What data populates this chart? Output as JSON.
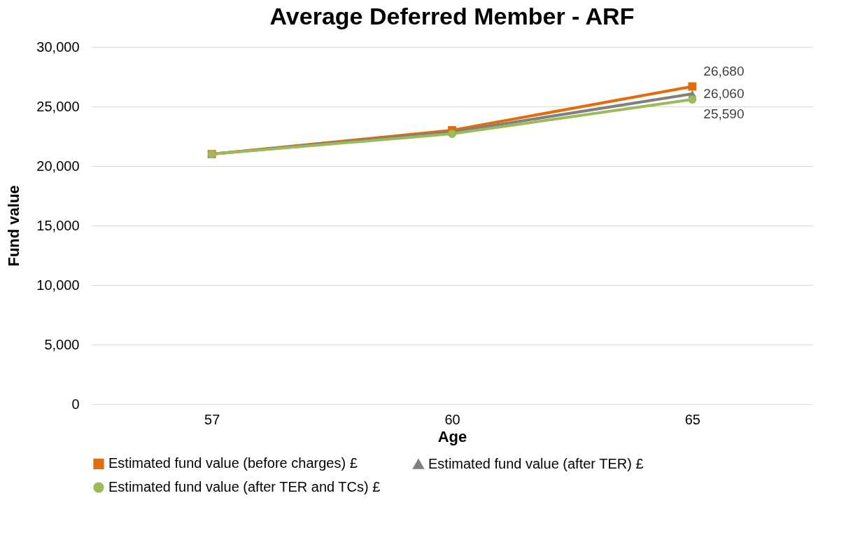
{
  "chart_data": {
    "type": "line",
    "title": "Average Deferred Member - ARF",
    "xlabel": "Age",
    "ylabel": "Fund value",
    "categories": [
      "57",
      "60",
      "65"
    ],
    "series": [
      {
        "name": "Estimated fund value (before charges) £",
        "color": "#e36c0a",
        "marker": "square",
        "values": [
          21000,
          23000,
          26680
        ],
        "value_labels": [
          null,
          null,
          "26,680"
        ]
      },
      {
        "name": "Estimated fund value (after TER) £",
        "color": "#808080",
        "marker": "triangle",
        "values": [
          21000,
          22850,
          26060
        ],
        "value_labels": [
          null,
          null,
          "26,060"
        ]
      },
      {
        "name": "Estimated fund value (after TER and TCs) £",
        "color": "#9bbb59",
        "marker": "circle",
        "values": [
          21000,
          22700,
          25590
        ],
        "value_labels": [
          null,
          null,
          "25,590"
        ]
      }
    ],
    "ylim": [
      0,
      30000
    ],
    "yticks": [
      0,
      {
        "value": 5000,
        "label": "5,000"
      },
      {
        "value": 10000,
        "label": "10,000"
      },
      {
        "value": 15000,
        "label": "15,000"
      },
      {
        "value": 20000,
        "label": "20,000"
      },
      {
        "value": 25000,
        "label": "25,000"
      },
      {
        "value": 30000,
        "label": "30,000"
      }
    ],
    "grid": "y",
    "legend": "bottom"
  }
}
